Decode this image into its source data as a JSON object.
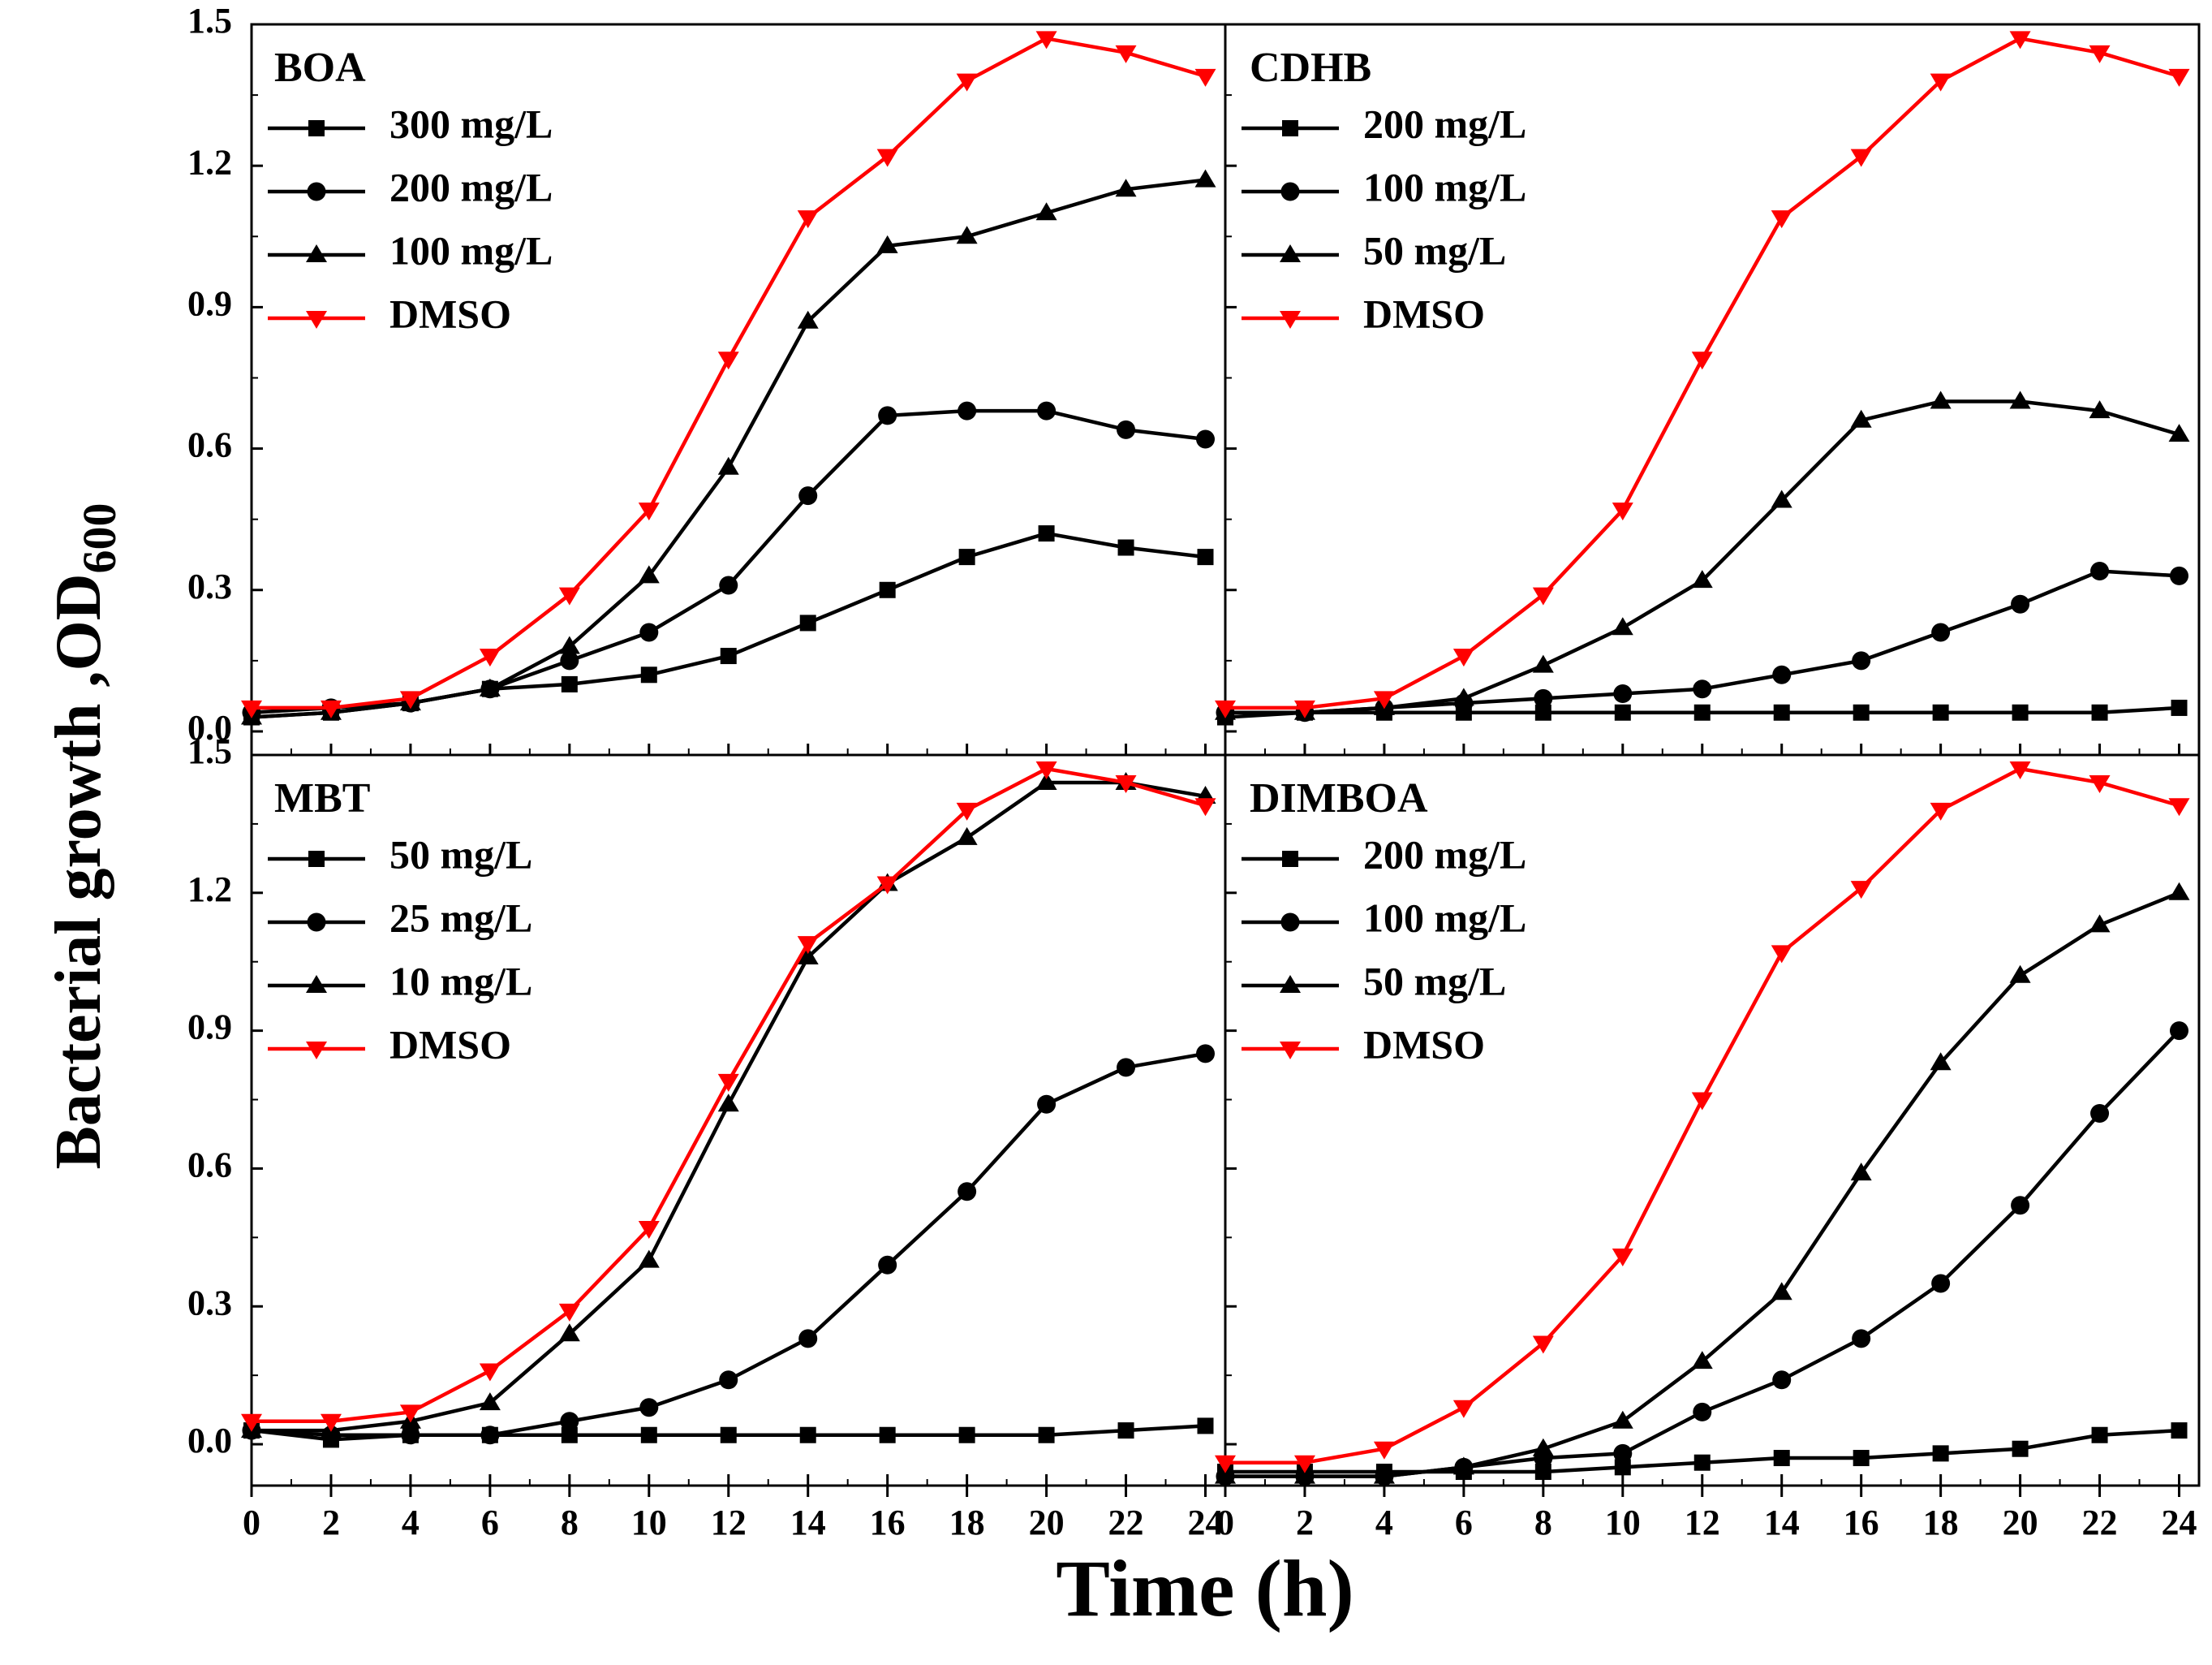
{
  "figure": {
    "xlabel": "Time (h)",
    "ylabel_main": "Bacterial growth ,OD",
    "ylabel_sub": "600"
  },
  "colors": {
    "black": "#000000",
    "red": "#ff0000"
  },
  "chart_data": [
    {
      "type": "line",
      "title": "BOA",
      "xlim": [
        0,
        24.5
      ],
      "ylim": [
        -0.05,
        1.5
      ],
      "xticks": [
        "0",
        "2",
        "4",
        "6",
        "8",
        "10",
        "12",
        "14",
        "16",
        "18",
        "20",
        "22",
        "24"
      ],
      "yticks": [
        "0.0",
        "0.3",
        "0.6",
        "0.9",
        "1.2",
        "1.5"
      ],
      "x": [
        0,
        2,
        4,
        6,
        8,
        10,
        12,
        14,
        16,
        18,
        20,
        22,
        24
      ],
      "series": [
        {
          "name": "300 mg/L",
          "marker": "square",
          "color": "#000000",
          "values": [
            0.03,
            0.04,
            0.06,
            0.09,
            0.1,
            0.12,
            0.16,
            0.23,
            0.3,
            0.37,
            0.42,
            0.39,
            0.37
          ]
        },
        {
          "name": "200 mg/L",
          "marker": "circle",
          "color": "#000000",
          "values": [
            0.04,
            0.05,
            0.06,
            0.09,
            0.15,
            0.21,
            0.31,
            0.5,
            0.67,
            0.68,
            0.68,
            0.64,
            0.62
          ]
        },
        {
          "name": "100 mg/L",
          "marker": "triangle-up",
          "color": "#000000",
          "values": [
            0.03,
            0.04,
            0.06,
            0.09,
            0.18,
            0.33,
            0.56,
            0.87,
            1.03,
            1.05,
            1.1,
            1.15,
            1.17
          ]
        },
        {
          "name": "DMSO",
          "marker": "triangle-down",
          "color": "#ff0000",
          "values": [
            0.05,
            0.05,
            0.07,
            0.16,
            0.29,
            0.47,
            0.79,
            1.09,
            1.22,
            1.38,
            1.47,
            1.44,
            1.39
          ]
        }
      ]
    },
    {
      "type": "line",
      "title": "CDHB",
      "xlim": [
        0,
        24.5
      ],
      "ylim": [
        -0.05,
        1.5
      ],
      "xticks": [
        "0",
        "2",
        "4",
        "6",
        "8",
        "10",
        "12",
        "14",
        "16",
        "18",
        "20",
        "22",
        "24"
      ],
      "yticks": [],
      "x": [
        0,
        2,
        4,
        6,
        8,
        10,
        12,
        14,
        16,
        18,
        20,
        22,
        24
      ],
      "series": [
        {
          "name": "200 mg/L",
          "marker": "square",
          "color": "#000000",
          "values": [
            0.03,
            0.04,
            0.04,
            0.04,
            0.04,
            0.04,
            0.04,
            0.04,
            0.04,
            0.04,
            0.04,
            0.04,
            0.05
          ]
        },
        {
          "name": "100 mg/L",
          "marker": "circle",
          "color": "#000000",
          "values": [
            0.04,
            0.04,
            0.05,
            0.06,
            0.07,
            0.08,
            0.09,
            0.12,
            0.15,
            0.21,
            0.27,
            0.34,
            0.33
          ]
        },
        {
          "name": "50 mg/L",
          "marker": "triangle-up",
          "color": "#000000",
          "values": [
            0.04,
            0.04,
            0.05,
            0.07,
            0.14,
            0.22,
            0.32,
            0.49,
            0.66,
            0.7,
            0.7,
            0.68,
            0.63
          ]
        },
        {
          "name": "DMSO",
          "marker": "triangle-down",
          "color": "#ff0000",
          "values": [
            0.05,
            0.05,
            0.07,
            0.16,
            0.29,
            0.47,
            0.79,
            1.09,
            1.22,
            1.38,
            1.47,
            1.44,
            1.39
          ]
        }
      ]
    },
    {
      "type": "line",
      "title": "MBT",
      "xlim": [
        0,
        24.5
      ],
      "ylim": [
        -0.09,
        1.5
      ],
      "xticks": [
        "0",
        "2",
        "4",
        "6",
        "8",
        "10",
        "12",
        "14",
        "16",
        "18",
        "20",
        "22",
        "24"
      ],
      "yticks": [
        "0.0",
        "0.3",
        "0.6",
        "0.9",
        "1.2",
        "1.5"
      ],
      "x": [
        0,
        2,
        4,
        6,
        8,
        10,
        12,
        14,
        16,
        18,
        20,
        22,
        24
      ],
      "series": [
        {
          "name": "50 mg/L",
          "marker": "square",
          "color": "#000000",
          "values": [
            0.03,
            0.01,
            0.02,
            0.02,
            0.02,
            0.02,
            0.02,
            0.02,
            0.02,
            0.02,
            0.02,
            0.03,
            0.04
          ]
        },
        {
          "name": "25 mg/L",
          "marker": "circle",
          "color": "#000000",
          "values": [
            0.03,
            0.02,
            0.02,
            0.02,
            0.05,
            0.08,
            0.14,
            0.23,
            0.39,
            0.55,
            0.74,
            0.82,
            0.85
          ]
        },
        {
          "name": "10 mg/L",
          "marker": "triangle-up",
          "color": "#000000",
          "values": [
            0.03,
            0.03,
            0.05,
            0.09,
            0.24,
            0.4,
            0.74,
            1.06,
            1.22,
            1.32,
            1.44,
            1.44,
            1.41
          ]
        },
        {
          "name": "DMSO",
          "marker": "triangle-down",
          "color": "#ff0000",
          "values": [
            0.05,
            0.05,
            0.07,
            0.16,
            0.29,
            0.47,
            0.79,
            1.09,
            1.22,
            1.38,
            1.47,
            1.44,
            1.39
          ]
        }
      ]
    },
    {
      "type": "line",
      "title": "DIMBOA",
      "xlim": [
        0,
        24.5
      ],
      "ylim": [
        -0.09,
        1.5
      ],
      "xticks": [
        "0",
        "2",
        "4",
        "6",
        "8",
        "10",
        "12",
        "14",
        "16",
        "18",
        "20",
        "22",
        "24"
      ],
      "yticks": [],
      "x": [
        0,
        2,
        4,
        6,
        8,
        10,
        12,
        14,
        16,
        18,
        20,
        22,
        24
      ],
      "series": [
        {
          "name": "200 mg/L",
          "marker": "square",
          "color": "#000000",
          "values": [
            -0.06,
            -0.06,
            -0.06,
            -0.06,
            -0.06,
            -0.05,
            -0.04,
            -0.03,
            -0.03,
            -0.02,
            -0.01,
            0.02,
            0.03
          ]
        },
        {
          "name": "100 mg/L",
          "marker": "circle",
          "color": "#000000",
          "values": [
            -0.07,
            -0.07,
            -0.07,
            -0.05,
            -0.03,
            -0.02,
            0.07,
            0.14,
            0.23,
            0.35,
            0.52,
            0.72,
            0.9
          ]
        },
        {
          "name": "50 mg/L",
          "marker": "triangle-up",
          "color": "#000000",
          "values": [
            -0.07,
            -0.07,
            -0.07,
            -0.05,
            -0.01,
            0.05,
            0.18,
            0.33,
            0.59,
            0.83,
            1.02,
            1.13,
            1.2
          ]
        },
        {
          "name": "DMSO",
          "marker": "triangle-down",
          "color": "#ff0000",
          "values": [
            -0.04,
            -0.04,
            -0.01,
            0.08,
            0.22,
            0.41,
            0.75,
            1.07,
            1.21,
            1.38,
            1.47,
            1.44,
            1.39
          ]
        }
      ]
    }
  ]
}
